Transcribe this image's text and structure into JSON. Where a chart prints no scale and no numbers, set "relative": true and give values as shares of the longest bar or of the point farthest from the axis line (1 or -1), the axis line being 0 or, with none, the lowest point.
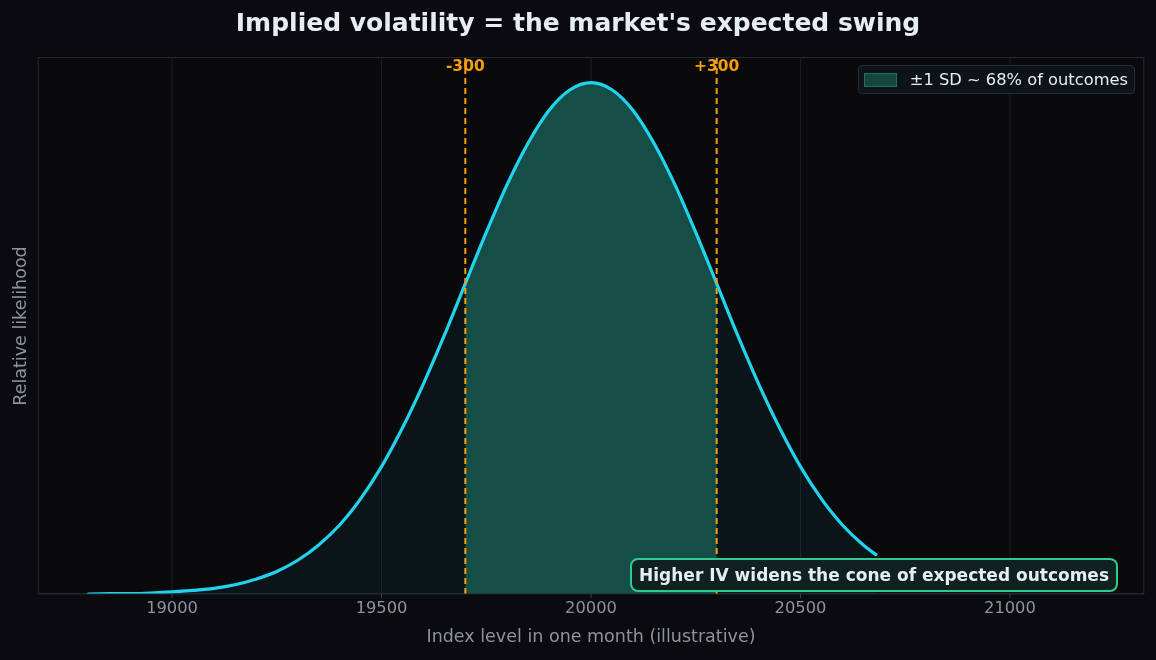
{
  "chart_data": {
    "type": "area",
    "title": "Implied volatility = the market's expected swing",
    "xlabel": "Index level in one month (illustrative)",
    "ylabel": "Relative likelihood",
    "relative": true,
    "x": [
      18800,
      18850,
      18900,
      18950,
      19000,
      19050,
      19100,
      19150,
      19200,
      19250,
      19300,
      19350,
      19400,
      19450,
      19500,
      19550,
      19600,
      19650,
      19700,
      19750,
      19800,
      19850,
      19900,
      19950,
      20000,
      20050,
      20100,
      20150,
      20200,
      20250,
      20300,
      20350,
      20400,
      20450,
      20500,
      20550,
      20600,
      20650,
      20680
    ],
    "series": [
      {
        "color": "#22d3ee",
        "values": [
          0.0,
          0.001,
          0.001,
          0.002,
          0.004,
          0.007,
          0.011,
          0.018,
          0.029,
          0.044,
          0.066,
          0.096,
          0.135,
          0.186,
          0.249,
          0.325,
          0.411,
          0.506,
          0.607,
          0.707,
          0.801,
          0.882,
          0.946,
          0.986,
          1.0,
          0.986,
          0.946,
          0.882,
          0.801,
          0.707,
          0.607,
          0.506,
          0.411,
          0.325,
          0.249,
          0.186,
          0.135,
          0.096,
          0.077
        ]
      },
      {
        "name": "±1 SD ~ 68% of outcomes",
        "color": "#15463f",
        "values": [
          null,
          null,
          null,
          null,
          null,
          null,
          null,
          null,
          null,
          null,
          null,
          null,
          null,
          null,
          null,
          null,
          null,
          null,
          0.607,
          0.707,
          0.801,
          0.882,
          0.946,
          0.986,
          1.0,
          0.986,
          0.946,
          0.882,
          0.801,
          0.707,
          0.607,
          null,
          null,
          null,
          null,
          null,
          null,
          null,
          null
        ]
      }
    ],
    "xlim": [
      18680,
      21320
    ],
    "xticks": [
      19000,
      19500,
      20000,
      20500,
      21000
    ],
    "grid": "x",
    "legend": "top right",
    "ref_lines": [
      {
        "axis": "x",
        "value": 19700,
        "color": "#f59e0b",
        "line_style": "dashed"
      },
      {
        "axis": "x",
        "value": 20300,
        "color": "#f59e0b",
        "line_style": "dashed"
      }
    ],
    "annotations": [
      {
        "text": "-300",
        "x": 19700
      },
      {
        "text": "+300",
        "x": 20300
      },
      "Higher IV widens the cone of expected outcomes"
    ]
  }
}
